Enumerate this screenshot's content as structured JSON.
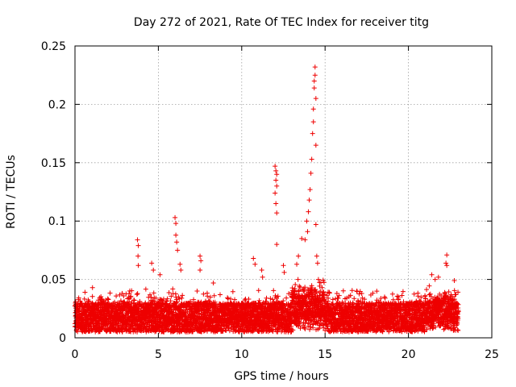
{
  "chart_data": {
    "type": "scatter",
    "title": "Day 272 of 2021, Rate Of TEC Index for receiver titg",
    "xlabel": "GPS time / hours",
    "ylabel": "ROTI / TECUs",
    "xlim": [
      0,
      25
    ],
    "ylim": [
      0,
      0.25
    ],
    "xticks": [
      0,
      5,
      10,
      15,
      20,
      25
    ],
    "yticks": [
      0,
      0.05,
      0.1,
      0.15,
      0.2,
      0.25
    ],
    "xtick_labels": [
      "0",
      "5",
      "10",
      "15",
      "20",
      "25"
    ],
    "ytick_labels": [
      "0",
      "0.05",
      "0.1",
      "0.15",
      "0.2",
      "0.25"
    ],
    "grid": true,
    "marker": "+",
    "color": "#ee0000",
    "data_range_hours": [
      0,
      23
    ],
    "baseline_band": [
      0.005,
      0.03
    ],
    "series": [
      {
        "name": "ROTI",
        "peaks": [
          {
            "x": 0.6,
            "y": 0.039
          },
          {
            "x": 1.05,
            "y": 0.043
          },
          {
            "x": 1.55,
            "y": 0.033
          },
          {
            "x": 3.75,
            "y": 0.084
          },
          {
            "x": 3.8,
            "y": 0.079
          },
          {
            "x": 3.78,
            "y": 0.07
          },
          {
            "x": 3.8,
            "y": 0.062
          },
          {
            "x": 4.6,
            "y": 0.064
          },
          {
            "x": 4.7,
            "y": 0.058
          },
          {
            "x": 5.1,
            "y": 0.054
          },
          {
            "x": 6.0,
            "y": 0.103
          },
          {
            "x": 6.05,
            "y": 0.098
          },
          {
            "x": 6.05,
            "y": 0.088
          },
          {
            "x": 6.1,
            "y": 0.082
          },
          {
            "x": 6.15,
            "y": 0.075
          },
          {
            "x": 6.3,
            "y": 0.063
          },
          {
            "x": 6.35,
            "y": 0.058
          },
          {
            "x": 7.5,
            "y": 0.07
          },
          {
            "x": 7.55,
            "y": 0.066
          },
          {
            "x": 7.5,
            "y": 0.058
          },
          {
            "x": 8.3,
            "y": 0.047
          },
          {
            "x": 10.7,
            "y": 0.068
          },
          {
            "x": 10.8,
            "y": 0.063
          },
          {
            "x": 11.2,
            "y": 0.058
          },
          {
            "x": 11.25,
            "y": 0.052
          },
          {
            "x": 12.0,
            "y": 0.147
          },
          {
            "x": 12.05,
            "y": 0.143
          },
          {
            "x": 12.1,
            "y": 0.14
          },
          {
            "x": 12.05,
            "y": 0.135
          },
          {
            "x": 12.1,
            "y": 0.13
          },
          {
            "x": 12.0,
            "y": 0.124
          },
          {
            "x": 12.05,
            "y": 0.115
          },
          {
            "x": 12.1,
            "y": 0.107
          },
          {
            "x": 12.1,
            "y": 0.08
          },
          {
            "x": 12.5,
            "y": 0.062
          },
          {
            "x": 12.55,
            "y": 0.056
          },
          {
            "x": 13.3,
            "y": 0.063
          },
          {
            "x": 13.4,
            "y": 0.07
          },
          {
            "x": 13.6,
            "y": 0.085
          },
          {
            "x": 13.8,
            "y": 0.084
          },
          {
            "x": 13.9,
            "y": 0.1
          },
          {
            "x": 13.95,
            "y": 0.091
          },
          {
            "x": 14.0,
            "y": 0.108
          },
          {
            "x": 14.05,
            "y": 0.118
          },
          {
            "x": 14.1,
            "y": 0.127
          },
          {
            "x": 14.15,
            "y": 0.141
          },
          {
            "x": 14.2,
            "y": 0.153
          },
          {
            "x": 14.25,
            "y": 0.175
          },
          {
            "x": 14.3,
            "y": 0.185
          },
          {
            "x": 14.3,
            "y": 0.196
          },
          {
            "x": 14.35,
            "y": 0.214
          },
          {
            "x": 14.35,
            "y": 0.22
          },
          {
            "x": 14.4,
            "y": 0.225
          },
          {
            "x": 14.4,
            "y": 0.232
          },
          {
            "x": 14.45,
            "y": 0.205
          },
          {
            "x": 14.45,
            "y": 0.165
          },
          {
            "x": 14.45,
            "y": 0.097
          },
          {
            "x": 14.5,
            "y": 0.07
          },
          {
            "x": 14.55,
            "y": 0.064
          },
          {
            "x": 14.6,
            "y": 0.05
          },
          {
            "x": 16.3,
            "y": 0.034
          },
          {
            "x": 17.2,
            "y": 0.038
          },
          {
            "x": 18.1,
            "y": 0.04
          },
          {
            "x": 19.4,
            "y": 0.035
          },
          {
            "x": 20.5,
            "y": 0.03
          },
          {
            "x": 21.4,
            "y": 0.054
          },
          {
            "x": 21.6,
            "y": 0.05
          },
          {
            "x": 21.8,
            "y": 0.052
          },
          {
            "x": 22.3,
            "y": 0.071
          },
          {
            "x": 22.25,
            "y": 0.064
          },
          {
            "x": 22.3,
            "y": 0.062
          },
          {
            "x": 22.75,
            "y": 0.049
          }
        ]
      }
    ]
  }
}
